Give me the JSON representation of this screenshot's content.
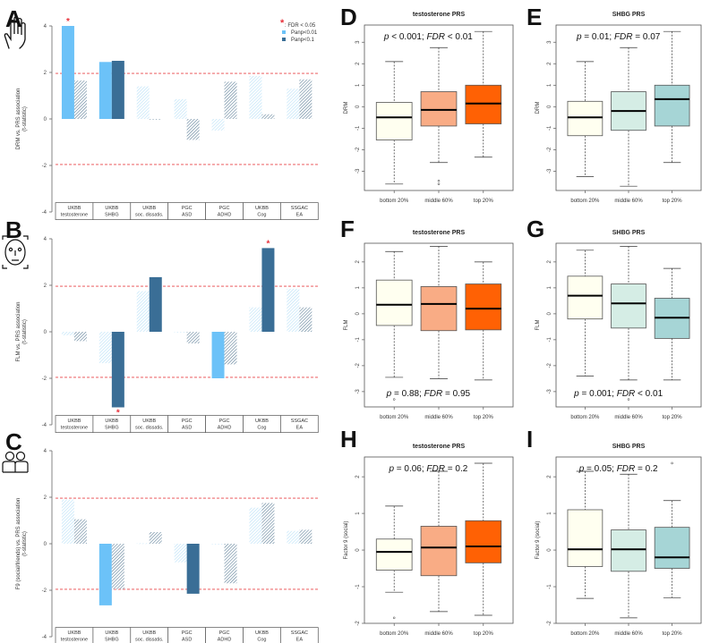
{
  "panel_letters": [
    "A",
    "B",
    "C",
    "D",
    "E",
    "F",
    "G",
    "H",
    "I"
  ],
  "icons": {
    "A": "hand-icon",
    "B": "face-icon",
    "C": "people-icon"
  },
  "legend": {
    "star_label": ": FDR < 0.05",
    "items": [
      {
        "label": "Panp<0.01",
        "color": "#6CC2F8"
      },
      {
        "label": "Panp<0.1",
        "color": "#3A6E96"
      }
    ]
  },
  "colors": {
    "light_blue": "#6CC2F8",
    "dark_blue": "#3A6E96",
    "light_hatch": "#BCE2F8",
    "dark_hatch": "#5E7F98",
    "threshold": "#E8454A",
    "star": "#E8303A",
    "bottom20": "#FFFFF0",
    "testosterone_middle": "#F9AC85",
    "testosterone_top": "#FF6104",
    "shbg_middle": "#D5EDE5",
    "shbg_top": "#A6D5D6"
  },
  "chart_data": [
    {
      "type": "bar",
      "panel": "A",
      "ylabel": "DRM vs. PRS association",
      "ylabel2": "(t-statistic)",
      "ylim": [
        -4,
        4
      ],
      "yticks": [
        "4",
        "2",
        "0",
        "-2",
        "-4"
      ],
      "threshold": [
        1.96,
        -1.96
      ],
      "categories": [
        [
          "UKBB",
          "testosterone"
        ],
        [
          "UKBB",
          "SHBG"
        ],
        [
          "UKBB",
          "soc. dissatis."
        ],
        [
          "PGC",
          "ASD"
        ],
        [
          "PGC",
          "ADHD"
        ],
        [
          "UKBB",
          "Cog"
        ],
        [
          "SSGAC",
          "EA"
        ]
      ],
      "series": [
        {
          "values": [
            4.0,
            2.45,
            1.4,
            0.85,
            -0.5,
            1.85,
            1.3
          ],
          "solid": [
            true,
            true,
            false,
            false,
            false,
            false,
            false
          ],
          "star": [
            true,
            false,
            false,
            false,
            false,
            false,
            false
          ]
        },
        {
          "values": [
            1.65,
            2.5,
            -0.03,
            -0.9,
            1.6,
            0.2,
            1.7
          ],
          "solid": [
            false,
            true,
            false,
            false,
            false,
            false,
            false
          ],
          "star": [
            false,
            false,
            false,
            false,
            false,
            false,
            false
          ]
        }
      ]
    },
    {
      "type": "bar",
      "panel": "B",
      "ylabel": "FLM vs. PRS association",
      "ylabel2": "(t-statistic)",
      "ylim": [
        -4,
        4
      ],
      "yticks": [
        "4",
        "2",
        "0",
        "-2",
        "-4"
      ],
      "threshold": [
        1.96,
        -1.96
      ],
      "categories": [
        [
          "UKBB",
          "testosterone"
        ],
        [
          "UKBB",
          "SHBG"
        ],
        [
          "UKBB",
          "soc. dissatis."
        ],
        [
          "PGC",
          "ASD"
        ],
        [
          "PGC",
          "ADHD"
        ],
        [
          "UKBB",
          "Cog"
        ],
        [
          "SSGAC",
          "EA"
        ]
      ],
      "series": [
        {
          "values": [
            -0.15,
            -1.35,
            1.75,
            -0.03,
            -2.0,
            1.05,
            1.85
          ],
          "solid": [
            false,
            false,
            false,
            false,
            true,
            false,
            false
          ],
          "star": [
            false,
            false,
            false,
            false,
            false,
            false,
            false
          ]
        },
        {
          "values": [
            -0.4,
            -3.25,
            2.35,
            -0.5,
            -1.4,
            3.6,
            1.05
          ],
          "solid": [
            false,
            true,
            true,
            false,
            false,
            true,
            false
          ],
          "star": [
            false,
            true,
            false,
            false,
            false,
            true,
            false
          ]
        }
      ]
    },
    {
      "type": "bar",
      "panel": "C",
      "ylabel": "F9 (social/friends) vs. PRS association",
      "ylabel2": "(t-statistic)",
      "ylim": [
        -4,
        4
      ],
      "yticks": [
        "4",
        "2",
        "0",
        "-2",
        "-4"
      ],
      "threshold": [
        1.96,
        -1.96
      ],
      "categories": [
        [
          "UKBB",
          "testosterone"
        ],
        [
          "UKBB",
          "SHBG"
        ],
        [
          "UKBB",
          "soc. dissatis."
        ],
        [
          "PGC",
          "ASD"
        ],
        [
          "PGC",
          "ADHD"
        ],
        [
          "UKBB",
          "Cog"
        ],
        [
          "SSGAC",
          "EA"
        ]
      ],
      "series": [
        {
          "values": [
            1.9,
            -2.65,
            0.02,
            -0.8,
            0.0,
            1.55,
            0.55
          ],
          "solid": [
            false,
            true,
            false,
            false,
            false,
            false,
            false
          ],
          "star": [
            false,
            false,
            false,
            false,
            false,
            false,
            false
          ]
        },
        {
          "values": [
            1.05,
            -1.95,
            0.5,
            -2.15,
            -1.7,
            1.75,
            0.6
          ],
          "solid": [
            false,
            false,
            false,
            true,
            false,
            false,
            false
          ],
          "star": [
            false,
            false,
            false,
            false,
            false,
            false,
            false
          ]
        }
      ]
    },
    {
      "type": "box",
      "panel": "D",
      "title": "testosterone PRS",
      "ylabel": "DRM",
      "annotation": "p < 0.001; FDR < 0.01",
      "annotation_position": "top",
      "ylim": [
        -3.9,
        3.8
      ],
      "yticks": [
        -3,
        -2,
        -1,
        0,
        1,
        2,
        3
      ],
      "categories": [
        "bottom 20%",
        "middle 60%",
        "top 20%"
      ],
      "fills": [
        "#FFFFF0",
        "#F9AC85",
        "#FF6104"
      ],
      "boxes": [
        {
          "min": -3.6,
          "q1": -1.55,
          "median": -0.5,
          "q3": 0.2,
          "max": 2.1,
          "outliers": []
        },
        {
          "min": -2.6,
          "q1": -0.9,
          "median": -0.15,
          "q3": 0.7,
          "max": 2.75,
          "outliers": [
            -3.45,
            -3.6
          ]
        },
        {
          "min": -2.35,
          "q1": -0.8,
          "median": 0.15,
          "q3": 1.0,
          "max": 3.5,
          "outliers": []
        }
      ]
    },
    {
      "type": "box",
      "panel": "E",
      "title": "SHBG PRS",
      "ylabel": "DRM",
      "annotation": "p = 0.01; FDR = 0.07",
      "annotation_position": "top",
      "ylim": [
        -3.9,
        3.8
      ],
      "yticks": [
        -3,
        -2,
        -1,
        0,
        1,
        2,
        3
      ],
      "categories": [
        "bottom 20%",
        "middle 60%",
        "top 20%"
      ],
      "fills": [
        "#FFFFF0",
        "#D5EDE5",
        "#A6D5D6"
      ],
      "boxes": [
        {
          "min": -3.25,
          "q1": -1.35,
          "median": -0.5,
          "q3": 0.25,
          "max": 2.1,
          "outliers": []
        },
        {
          "min": -3.7,
          "q1": -1.1,
          "median": -0.2,
          "q3": 0.7,
          "max": 2.75,
          "outliers": []
        },
        {
          "min": -2.6,
          "q1": -0.9,
          "median": 0.35,
          "q3": 1.0,
          "max": 3.5,
          "outliers": []
        }
      ]
    },
    {
      "type": "box",
      "panel": "F",
      "title": "testosterone PRS",
      "ylabel": "FLM",
      "annotation": "p = 0.88; FDR = 0.95",
      "annotation_position": "bottom",
      "ylim": [
        -3.59,
        2.72
      ],
      "yticks": [
        -3,
        -2,
        -1,
        0,
        1,
        2
      ],
      "categories": [
        "bottom 20%",
        "middle 60%",
        "top 20%"
      ],
      "fills": [
        "#FFFFF0",
        "#F9AC85",
        "#FF6104"
      ],
      "boxes": [
        {
          "min": -2.45,
          "q1": -0.45,
          "median": 0.35,
          "q3": 1.3,
          "max": 2.4,
          "outliers": [
            -3.3
          ]
        },
        {
          "min": -2.5,
          "q1": -0.65,
          "median": 0.38,
          "q3": 1.05,
          "max": 2.6,
          "outliers": []
        },
        {
          "min": -2.55,
          "q1": -0.62,
          "median": 0.2,
          "q3": 1.15,
          "max": 2.0,
          "outliers": []
        }
      ]
    },
    {
      "type": "box",
      "panel": "G",
      "title": "SHBG PRS",
      "ylabel": "FLM",
      "annotation": "p = 0.001; FDR < 0.01",
      "annotation_position": "bottom",
      "ylim": [
        -3.59,
        2.72
      ],
      "yticks": [
        -3,
        -2,
        -1,
        0,
        1,
        2
      ],
      "categories": [
        "bottom 20%",
        "middle 60%",
        "top 20%"
      ],
      "fills": [
        "#FFFFF0",
        "#D5EDE5",
        "#A6D5D6"
      ],
      "boxes": [
        {
          "min": -2.4,
          "q1": -0.2,
          "median": 0.7,
          "q3": 1.45,
          "max": 2.45,
          "outliers": []
        },
        {
          "min": -2.55,
          "q1": -0.55,
          "median": 0.4,
          "q3": 1.15,
          "max": 2.6,
          "outliers": [
            -3.3
          ]
        },
        {
          "min": -2.55,
          "q1": -0.95,
          "median": -0.15,
          "q3": 0.6,
          "max": 1.75,
          "outliers": []
        }
      ]
    },
    {
      "type": "box",
      "panel": "H",
      "title": "testosterone PRS",
      "ylabel": "Factor 9 (social)",
      "annotation": "p = 0.06; FDR = 0.2",
      "annotation_position": "top",
      "ylim": [
        -2.0,
        2.54
      ],
      "yticks": [
        -2,
        -1,
        0,
        1,
        2
      ],
      "categories": [
        "bottom 20%",
        "middle 60%",
        "top 20%"
      ],
      "fills": [
        "#FFFFF0",
        "#F9AC85",
        "#FF6104"
      ],
      "boxes": [
        {
          "min": -1.15,
          "q1": -0.55,
          "median": -0.05,
          "q3": 0.3,
          "max": 1.2,
          "outliers": [
            -1.85
          ]
        },
        {
          "min": -1.68,
          "q1": -0.7,
          "median": 0.07,
          "q3": 0.65,
          "max": 2.15,
          "outliers": []
        },
        {
          "min": -1.78,
          "q1": -0.35,
          "median": 0.1,
          "q3": 0.8,
          "max": 2.37,
          "outliers": []
        }
      ]
    },
    {
      "type": "box",
      "panel": "I",
      "title": "SHBG PRS",
      "ylabel": "Factor 9 (social)",
      "annotation": "p = 0.05; FDR = 0.2",
      "annotation_position": "top",
      "ylim": [
        -2.0,
        2.54
      ],
      "yticks": [
        -2,
        -1,
        0,
        1,
        2
      ],
      "categories": [
        "bottom 20%",
        "middle 60%",
        "top 20%"
      ],
      "fills": [
        "#FFFFF0",
        "#D5EDE5",
        "#A6D5D6"
      ],
      "boxes": [
        {
          "min": -1.32,
          "q1": -0.45,
          "median": 0.02,
          "q3": 1.1,
          "max": 2.15,
          "outliers": []
        },
        {
          "min": -1.85,
          "q1": -0.58,
          "median": 0.02,
          "q3": 0.55,
          "max": 2.07,
          "outliers": []
        },
        {
          "min": -1.3,
          "q1": -0.5,
          "median": -0.2,
          "q3": 0.62,
          "max": 1.35,
          "outliers": [
            2.37
          ]
        }
      ]
    }
  ]
}
